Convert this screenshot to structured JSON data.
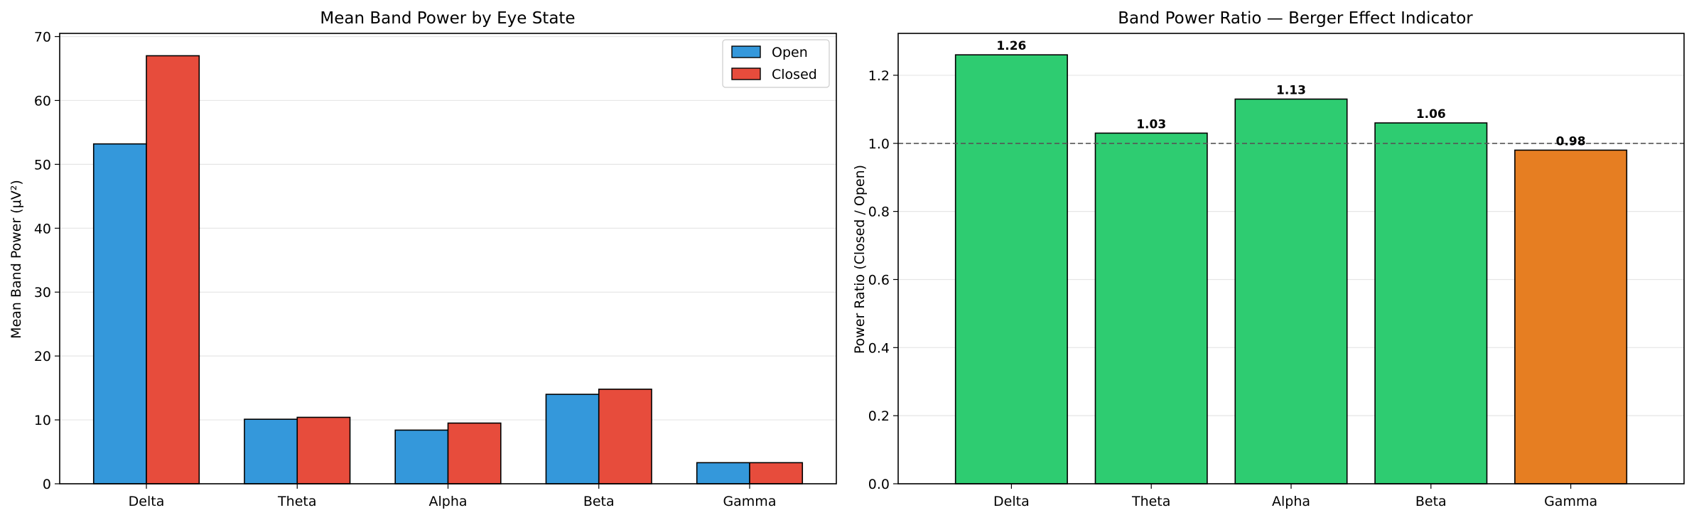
{
  "chart_data": [
    {
      "type": "bar",
      "title": "Mean Band Power by Eye State",
      "xlabel": "",
      "ylabel": "Mean Band Power (μV²)",
      "categories": [
        "Delta",
        "Theta",
        "Alpha",
        "Beta",
        "Gamma"
      ],
      "series": [
        {
          "name": "Open",
          "color": "#3498db",
          "values": [
            53.2,
            10.1,
            8.4,
            14.0,
            3.3
          ]
        },
        {
          "name": "Closed",
          "color": "#e74c3c",
          "values": [
            67.0,
            10.4,
            9.5,
            14.8,
            3.3
          ]
        }
      ],
      "ylim": [
        0,
        70.5
      ],
      "yticks": [
        0,
        10,
        20,
        30,
        40,
        50,
        60,
        70
      ],
      "grid": "y",
      "legend": "top-right"
    },
    {
      "type": "bar",
      "title": "Band Power Ratio — Berger Effect Indicator",
      "xlabel": "",
      "ylabel": "Power Ratio (Closed / Open)",
      "categories": [
        "Delta",
        "Theta",
        "Alpha",
        "Beta",
        "Gamma"
      ],
      "values": [
        1.26,
        1.03,
        1.13,
        1.06,
        0.98
      ],
      "value_labels": [
        "1.26",
        "1.03",
        "1.13",
        "1.06",
        "0.98"
      ],
      "colors": [
        "#2ecc71",
        "#2ecc71",
        "#2ecc71",
        "#2ecc71",
        "#e67e22"
      ],
      "reference_line": 1.0,
      "ylim": [
        0,
        1.323
      ],
      "yticks": [
        0.0,
        0.2,
        0.4,
        0.6,
        0.8,
        1.0,
        1.2
      ],
      "ytick_labels": [
        "0.0",
        "0.2",
        "0.4",
        "0.6",
        "0.8",
        "1.0",
        "1.2"
      ],
      "grid": "y"
    }
  ]
}
